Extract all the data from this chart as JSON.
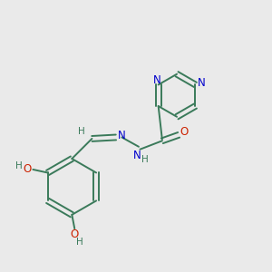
{
  "background_color": "#eaeaea",
  "bond_color": "#3a7a5a",
  "N_color": "#0000cc",
  "O_color": "#cc2200",
  "H_color": "#3a7a5a",
  "figsize": [
    3.0,
    3.0
  ],
  "dpi": 100,
  "xlim": [
    0,
    10
  ],
  "ylim": [
    0,
    10
  ]
}
